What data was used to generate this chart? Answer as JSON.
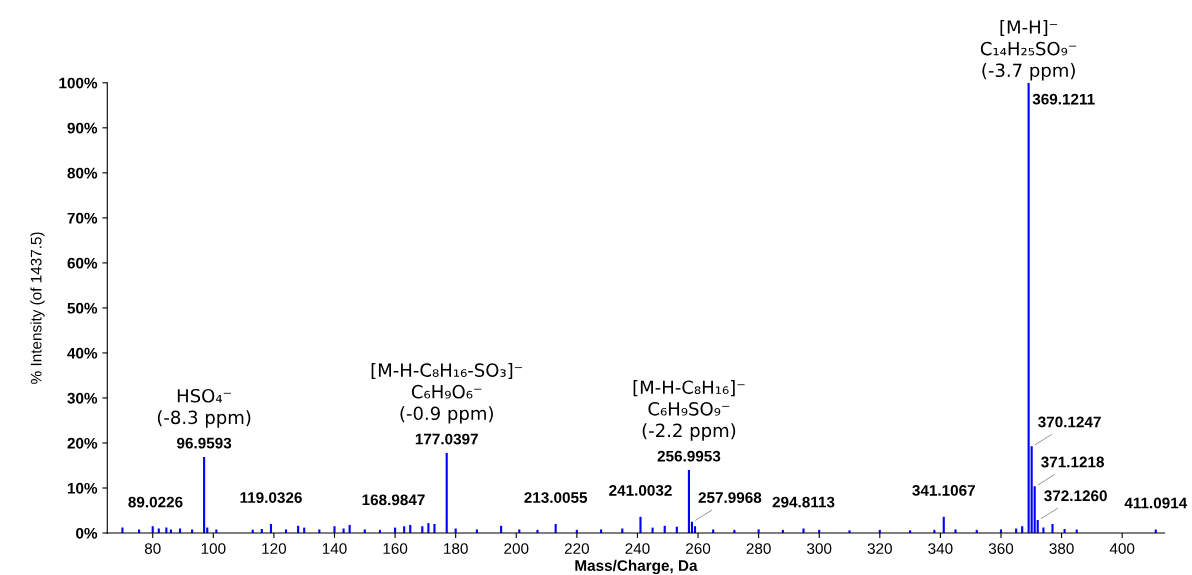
{
  "chart_data": {
    "type": "bar",
    "xlabel": "Mass/Charge, Da",
    "ylabel": "% Intensity (of 1437.5)",
    "x": [
      70.0,
      75.5,
      80.0,
      82.0,
      84.5,
      86.0,
      89.0226,
      93.0,
      96.9593,
      98.0,
      101.0,
      113.0,
      116.0,
      119.0326,
      124.0,
      128.0,
      130.0,
      135.0,
      140.0,
      143.0,
      145.0,
      150.0,
      155.0,
      160.0,
      163.0,
      165.0,
      168.9847,
      171.0,
      173.0,
      177.0397,
      180.0,
      187.0,
      195.0,
      201.0,
      207.0,
      213.0055,
      220.0,
      228.0,
      235.0,
      241.0032,
      245.0,
      249.0,
      253.0,
      256.9953,
      257.9968,
      259.0,
      265.0,
      272.0,
      280.0,
      288.0,
      294.8113,
      300.0,
      310.0,
      320.0,
      330.0,
      338.0,
      341.1067,
      345.0,
      352.0,
      360.0,
      365.0,
      367.0,
      369.1211,
      370.1247,
      371.1218,
      372.126,
      374.0,
      377.0,
      381.0,
      385.0,
      411.0914
    ],
    "values": [
      1.2,
      0.8,
      1.5,
      1.0,
      1.2,
      0.8,
      1.0,
      0.8,
      16.9,
      1.2,
      0.8,
      0.7,
      0.9,
      2.0,
      0.8,
      1.6,
      1.2,
      0.8,
      1.5,
      1.0,
      1.8,
      0.8,
      0.7,
      1.2,
      1.5,
      1.8,
      1.5,
      2.2,
      2.0,
      17.8,
      1.0,
      0.8,
      1.6,
      0.8,
      0.7,
      2.0,
      0.7,
      0.8,
      1.0,
      3.6,
      1.2,
      1.6,
      1.4,
      14.0,
      2.5,
      1.5,
      0.8,
      0.7,
      0.8,
      0.7,
      1.0,
      0.7,
      0.6,
      0.7,
      0.6,
      0.7,
      3.6,
      0.8,
      0.7,
      0.8,
      1.0,
      1.5,
      100,
      19.3,
      10.4,
      2.9,
      1.2,
      2.0,
      0.9,
      0.8,
      0.8
    ],
    "color": "#0000ff",
    "xlim": [
      65,
      414
    ],
    "xticks": [
      80,
      100,
      120,
      140,
      160,
      180,
      200,
      220,
      240,
      260,
      280,
      300,
      320,
      340,
      360,
      380,
      400
    ],
    "ylim": [
      0,
      100
    ],
    "yticks": [
      {
        "value": 0,
        "label": "0%"
      },
      {
        "value": 10,
        "label": "10%"
      },
      {
        "value": 20,
        "label": "20%"
      },
      {
        "value": 30,
        "label": "30%"
      },
      {
        "value": 40,
        "label": "40%"
      },
      {
        "value": 50,
        "label": "50%"
      },
      {
        "value": 60,
        "label": "60%"
      },
      {
        "value": 70,
        "label": "70%"
      },
      {
        "value": 80,
        "label": "80%"
      },
      {
        "value": 90,
        "label": "90%"
      },
      {
        "value": 100,
        "label": "100%"
      }
    ],
    "annotations": [
      {
        "text": "89.0226",
        "x": 89.0226,
        "y": 1.0
      },
      {
        "text": "96.9593",
        "x": 96.9593,
        "y": 16.9
      },
      {
        "text": "119.0326",
        "x": 119.0326,
        "y": 2.0
      },
      {
        "text": "168.9847",
        "x": 168.9847,
        "y": 1.5
      },
      {
        "text": "177.0397",
        "x": 177.0397,
        "y": 17.8
      },
      {
        "text": "213.0055",
        "x": 213.0055,
        "y": 2.0
      },
      {
        "text": "241.0032",
        "x": 241.0032,
        "y": 3.6
      },
      {
        "text": "256.9953",
        "x": 256.9953,
        "y": 14.0
      },
      {
        "text": "257.9968",
        "x": 257.9968,
        "y": 2.5
      },
      {
        "text": "294.8113",
        "x": 294.8113,
        "y": 1.0
      },
      {
        "text": "341.1067",
        "x": 341.1067,
        "y": 3.6
      },
      {
        "text": "369.1211",
        "x": 369.1211,
        "y": 100
      },
      {
        "text": "370.1247",
        "x": 370.1247,
        "y": 19.3
      },
      {
        "text": "371.1218",
        "x": 371.1218,
        "y": 10.4
      },
      {
        "text": "372.1260",
        "x": 372.126,
        "y": 2.9
      },
      {
        "text": "411.0914",
        "x": 411.0914,
        "y": 0.8
      },
      {
        "text": "HSO₄⁻\n(-8.3 ppm)",
        "x": 96.9593,
        "y": 16.9
      },
      {
        "text": "[M-H-C₈H₁₆-SO₃]⁻\nC₆H₉O₆⁻\n(-0.9 ppm)",
        "x": 177.0397,
        "y": 17.8
      },
      {
        "text": "[M-H-C₈H₁₆]⁻\nC₆H₉SO₉⁻\n(-2.2 ppm)",
        "x": 256.9953,
        "y": 14.0
      },
      {
        "text": "[M-H]⁻\nC₁₄H₂₅SO₉⁻\n(-3.7 ppm)",
        "x": 369.1211,
        "y": 100
      }
    ],
    "grid": false,
    "legend": false
  }
}
